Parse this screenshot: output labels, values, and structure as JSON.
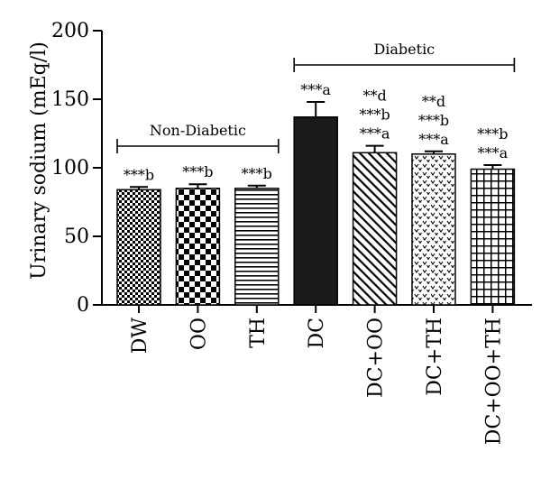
{
  "chart_data": {
    "type": "bar",
    "ylabel": "Urinary sodium (mEq/l)",
    "ylim": [
      0,
      200
    ],
    "yticks": [
      0,
      50,
      100,
      150,
      200
    ],
    "grid": false,
    "categories": [
      "DW",
      "OO",
      "TH",
      "DC",
      "DC+OO",
      "DC+TH",
      "DC+OO+TH"
    ],
    "values": [
      84,
      85,
      85,
      137,
      111,
      110,
      99
    ],
    "errors": [
      2,
      3,
      2,
      11,
      5,
      2,
      3
    ],
    "patterns": [
      "checker-fine",
      "checker-coarse",
      "hlines",
      "solid",
      "diagonal",
      "chevron-dots",
      "grid"
    ],
    "annotations": [
      [
        "***b"
      ],
      [
        "***b"
      ],
      [
        "***b"
      ],
      [
        "***a"
      ],
      [
        "**d",
        "***b",
        "***a"
      ],
      [
        "**d",
        "***b",
        "***a"
      ],
      [
        "***b",
        "***a"
      ]
    ],
    "groups": [
      {
        "label": "Non-Diabetic",
        "from": 0,
        "to": 2
      },
      {
        "label": "Diabetic",
        "from": 3,
        "to": 6
      }
    ]
  }
}
